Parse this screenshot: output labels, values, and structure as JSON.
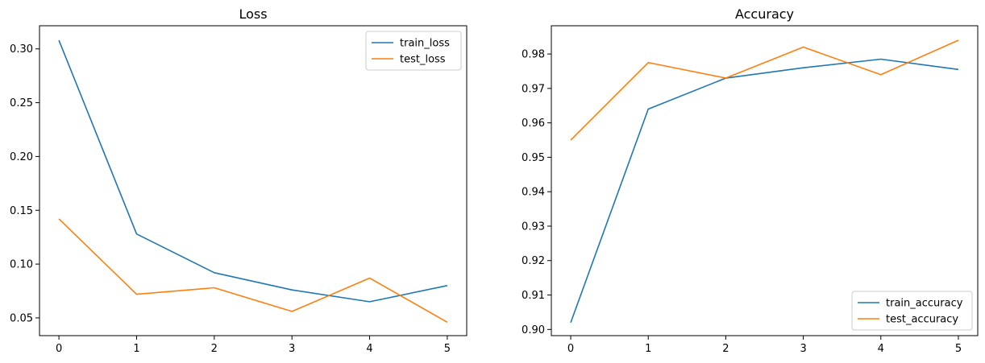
{
  "colors": {
    "series_1": "#1f77b4",
    "series_2": "#ff7f0e",
    "axes": "#000000",
    "legend_border": "#cccccc"
  },
  "chart_data": [
    {
      "type": "line",
      "title": "Loss",
      "xlabel": "",
      "ylabel": "",
      "x": [
        0,
        1,
        2,
        3,
        4,
        5
      ],
      "xticks": [
        "0",
        "1",
        "2",
        "3",
        "4",
        "5"
      ],
      "yticks": [
        "0.05",
        "0.10",
        "0.15",
        "0.20",
        "0.25",
        "0.30"
      ],
      "xlim": [
        -0.25,
        5.25
      ],
      "ylim": [
        0.0335,
        0.3215
      ],
      "grid": false,
      "legend_position": "top-right",
      "series": [
        {
          "name": "train_loss",
          "color": "#1f77b4",
          "values": [
            0.308,
            0.128,
            0.092,
            0.076,
            0.065,
            0.08
          ]
        },
        {
          "name": "test_loss",
          "color": "#ff7f0e",
          "values": [
            0.142,
            0.072,
            0.078,
            0.056,
            0.087,
            0.046
          ]
        }
      ]
    },
    {
      "type": "line",
      "title": "Accuracy",
      "xlabel": "",
      "ylabel": "",
      "x": [
        0,
        1,
        2,
        3,
        4,
        5
      ],
      "xticks": [
        "0",
        "1",
        "2",
        "3",
        "4",
        "5"
      ],
      "yticks": [
        "0.90",
        "0.91",
        "0.92",
        "0.93",
        "0.94",
        "0.95",
        "0.96",
        "0.97",
        "0.98"
      ],
      "xlim": [
        -0.25,
        5.25
      ],
      "ylim": [
        0.8982,
        0.9882
      ],
      "grid": false,
      "legend_position": "bottom-right",
      "series": [
        {
          "name": "train_accuracy",
          "color": "#1f77b4",
          "values": [
            0.902,
            0.964,
            0.973,
            0.976,
            0.9785,
            0.9755
          ]
        },
        {
          "name": "test_accuracy",
          "color": "#ff7f0e",
          "values": [
            0.955,
            0.9775,
            0.973,
            0.982,
            0.974,
            0.984
          ]
        }
      ]
    }
  ]
}
